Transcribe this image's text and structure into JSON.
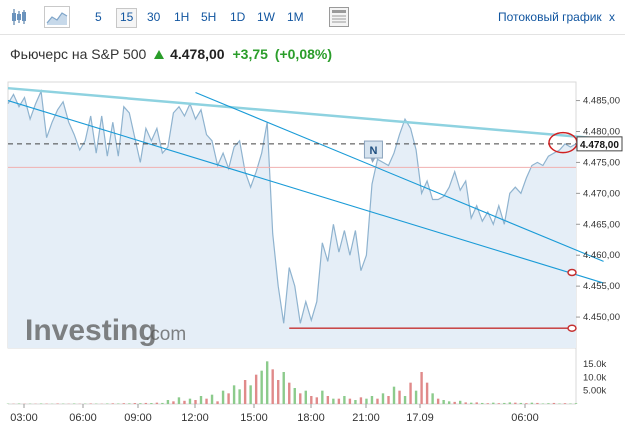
{
  "toolbar": {
    "timeframes": [
      "5",
      "15",
      "30",
      "1H",
      "5H",
      "1D",
      "1W",
      "1M"
    ],
    "active_timeframe": "15",
    "stream_label": "Потоковый график",
    "stream_close": "x"
  },
  "quote": {
    "name": "Фьючерс на S&P 500",
    "price": "4.478,00",
    "change": "+3,75",
    "change_pct": "(+0,08%)"
  },
  "watermark": {
    "brand": "Investing",
    "suffix": ".com"
  },
  "colors": {
    "up": "#2a9d2a",
    "down": "#c53030",
    "line": "#8fb3cf",
    "trend": "#1a9bd7",
    "channel": "#8ed2e0"
  },
  "chart_data": {
    "type": "area",
    "ylim": [
      4445,
      4488
    ],
    "y_ticks": [
      "4.485,00",
      "4.480,00",
      "4.475,00",
      "4.470,00",
      "4.465,00",
      "4.460,00",
      "4.455,00",
      "4.450,00"
    ],
    "x_ticks": [
      "03:00",
      "06:00",
      "09:00",
      "12:00",
      "15:00",
      "18:00",
      "21:00",
      "17.09",
      "06:00"
    ],
    "last_price_label": "4.478,00",
    "annotation_marker": "N",
    "volume_ticks": [
      "15.0k",
      "10.0k",
      "5.00k"
    ],
    "price_series": [
      4484.5,
      4486.0,
      4484.0,
      4485.5,
      4482.0,
      4484.5,
      4486.5,
      4479.0,
      4481.5,
      4483.5,
      4484.8,
      4481.5,
      4479.5,
      4477.0,
      4478.5,
      4482.5,
      4476.5,
      4482.5,
      4476.0,
      4481.5,
      4476.0,
      4484.0,
      4483.0,
      4479.0,
      4475.0,
      4480.5,
      4478.5,
      4480.5,
      4476.5,
      4477.5,
      4483.0,
      4484.0,
      4482.5,
      4484.5,
      4482.0,
      4483.5,
      4479.5,
      4478.5,
      4474.5,
      4476.5,
      4474.0,
      4477.5,
      4478.5,
      4473.5,
      4471.0,
      4473.5,
      4476.5,
      4481.5,
      4463.5,
      4455.0,
      4449.0,
      4458.0,
      4455.0,
      4449.0,
      4452.5,
      4449.5,
      4452.5,
      4462.0,
      4459.0,
      4465.0,
      4460.5,
      4464.0,
      4460.0,
      4464.0,
      4457.5,
      4460.0,
      4471.5,
      4475.5,
      4475.0,
      4474.5,
      4476.5,
      4479.5,
      4482.0,
      4480.5,
      4477.0,
      4470.0,
      4472.0,
      4469.0,
      4469.0,
      4469.5,
      4471.0,
      4473.5,
      4470.5,
      4472.0,
      4466.0,
      4468.0,
      4465.5,
      4467.0,
      4465.0,
      4468.0,
      4465.0,
      4470.0,
      4471.0,
      4470.0,
      4472.5,
      4474.5,
      4475.0,
      4474.5,
      4476.0,
      4476.5,
      4477.0,
      4478.0,
      4477.5,
      4478.0
    ],
    "volume_series": [
      0.15,
      0.1,
      0.2,
      0.1,
      0.15,
      0.1,
      0.2,
      0.15,
      0.1,
      0.2,
      0.15,
      0.1,
      0.2,
      0.1,
      0.15,
      0.2,
      0.15,
      0.1,
      0.2,
      0.25,
      0.2,
      0.3,
      0.25,
      0.35,
      0.3,
      0.4,
      0.35,
      0.5,
      0.4,
      1.5,
      1.0,
      2.5,
      1.2,
      2.0,
      1.5,
      3.0,
      2.0,
      3.5,
      1.0,
      5.0,
      4.0,
      7.0,
      5.5,
      9.0,
      7.0,
      11.0,
      12.5,
      16.0,
      13.0,
      9.0,
      12.0,
      8.0,
      6.0,
      4.0,
      5.0,
      3.0,
      2.5,
      5.0,
      3.0,
      2.0,
      2.0,
      3.0,
      2.0,
      1.5,
      2.5,
      2.0,
      3.0,
      2.0,
      4.0,
      3.0,
      6.5,
      5.0,
      3.0,
      8.0,
      5.0,
      12.0,
      8.0,
      4.0,
      2.0,
      1.5,
      1.0,
      0.8,
      1.2,
      0.6,
      0.5,
      0.6,
      0.4,
      0.3,
      0.5,
      0.3,
      0.4,
      0.6,
      0.5,
      0.4,
      0.3,
      0.5,
      0.4,
      0.2,
      0.3,
      0.4,
      0.2,
      0.3,
      0.2,
      0.3
    ],
    "volume_up": [
      true,
      false,
      true,
      false,
      true,
      false,
      true,
      false,
      true,
      false,
      true,
      false,
      true,
      false,
      true,
      false,
      true,
      false,
      true,
      false,
      true,
      false,
      true,
      false,
      true,
      false,
      true,
      false,
      true,
      true,
      false,
      true,
      false,
      true,
      false,
      true,
      false,
      true,
      false,
      true,
      false,
      true,
      true,
      false,
      true,
      false,
      true,
      true,
      false,
      false,
      true,
      false,
      true,
      false,
      true,
      false,
      false,
      true,
      false,
      true,
      false,
      true,
      false,
      true,
      false,
      true,
      true,
      false,
      true,
      false,
      true,
      false,
      true,
      false,
      true,
      false,
      false,
      true,
      false,
      true,
      true,
      false,
      true,
      false,
      true,
      false,
      true,
      false,
      true,
      false,
      true,
      true,
      false,
      true,
      false,
      true,
      false,
      true,
      true,
      false,
      true,
      false,
      true,
      true
    ],
    "trendlines": [
      {
        "name": "channel-top",
        "points": [
          [
            0,
            4487.0
          ],
          [
            108,
            4478.8
          ]
        ]
      },
      {
        "name": "support-line",
        "points": [
          [
            0,
            4485.0
          ],
          [
            108,
            4455.5
          ]
        ]
      },
      {
        "name": "resistance-line",
        "points": [
          [
            34,
            4486.3
          ],
          [
            108,
            4459.0
          ]
        ]
      }
    ],
    "reference_lines": {
      "current": 4478.0,
      "previous_close": 4474.2,
      "low": 4448.2,
      "low_start_index": 51
    }
  }
}
